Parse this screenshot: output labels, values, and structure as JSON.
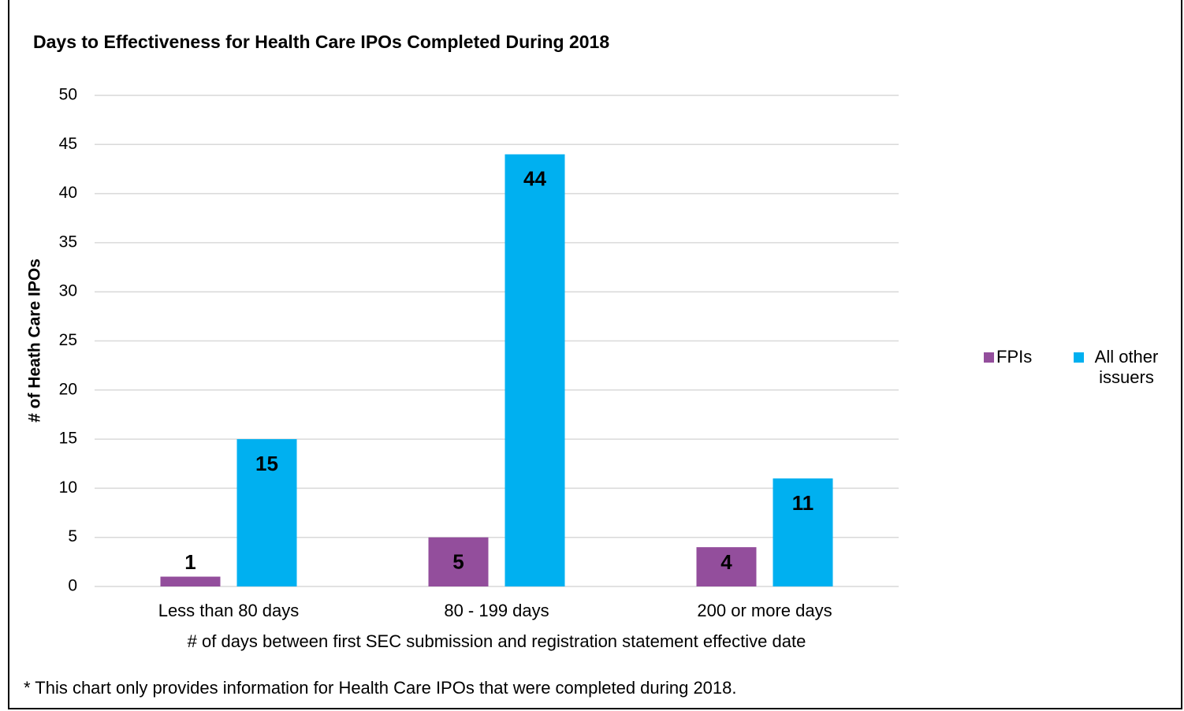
{
  "chart_data": {
    "type": "bar",
    "title": "Days to Effectiveness for Health Care IPOs Completed During 2018",
    "categories": [
      "Less than 80 days",
      "80 - 199 days",
      "200 or more days"
    ],
    "series": [
      {
        "name": "FPIs",
        "color": "#934E9C",
        "values": [
          1,
          5,
          4
        ]
      },
      {
        "name": "All other issuers",
        "color": "#00B0F0",
        "values": [
          15,
          44,
          11
        ]
      }
    ],
    "ylabel": "# of Heath Care IPOs",
    "xlabel": "# of days between first SEC submission and registration statement effective date",
    "ylim": [
      0,
      50
    ],
    "yticks": [
      0,
      5,
      10,
      15,
      20,
      25,
      30,
      35,
      40,
      45,
      50
    ],
    "grid": true,
    "legend": "right",
    "footnote": "* This chart only provides information for Health Care IPOs that were completed during 2018."
  }
}
